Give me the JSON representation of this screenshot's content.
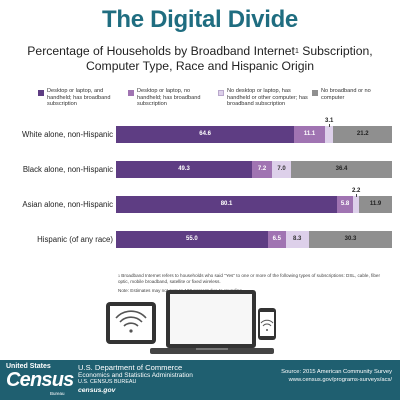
{
  "header": {
    "title": "The Digital Divide",
    "subtitle_main": "Percentage of Households by Broadband Internet",
    "subtitle_sup": "1",
    "subtitle_rest": " Subscription, Computer Type, Race and Hispanic Origin"
  },
  "chart_data": {
    "type": "bar",
    "orientation": "horizontal",
    "stacked": true,
    "categories": [
      "White alone, non-Hispanic",
      "Black alone, non-Hispanic",
      "Asian alone, non-Hispanic",
      "Hispanic (of any race)"
    ],
    "series": [
      {
        "name": "Desktop or laptop, and handheld; has broadband subscription",
        "color": "#5e3d83",
        "values": [
          64.6,
          49.3,
          80.1,
          55.0
        ]
      },
      {
        "name": "Desktop or laptop, no handheld; has broadband subscription",
        "color": "#a074b2",
        "values": [
          11.1,
          7.2,
          5.8,
          6.5
        ]
      },
      {
        "name": "No desktop or laptop, has handheld or other computer; has broadband subscription",
        "color": "#ddd0ea",
        "values": [
          3.1,
          7.0,
          2.2,
          8.3
        ]
      },
      {
        "name": "No broadband or no computer",
        "color": "#8f8f8f",
        "values": [
          21.2,
          36.4,
          11.9,
          30.3
        ]
      }
    ],
    "xlim": [
      0,
      100
    ],
    "legend_position": "top"
  },
  "notes": {
    "footnote_sup": "1",
    "footnote": " Broadband Internet refers to households who said \"Yes\" to one or more of the following types of subscriptions: DSL, cable, fiber optic, mobile broadband, satellite or fixed wireless.",
    "note": "Note: Estimates may not sum to 100 percent due to rounding."
  },
  "footer": {
    "logo_top": "United States",
    "logo_main": "Census",
    "logo_bureau": "Bureau",
    "dept_line1": "U.S. Department of Commerce",
    "dept_line2": "Economics and Statistics Administration",
    "dept_line3": "U.S. CENSUS BUREAU",
    "dept_line4": "census.gov",
    "source_line1": "Source: 2015 American Community Survey",
    "source_line2": "www.census.gov/programs-surveys/acs/"
  }
}
